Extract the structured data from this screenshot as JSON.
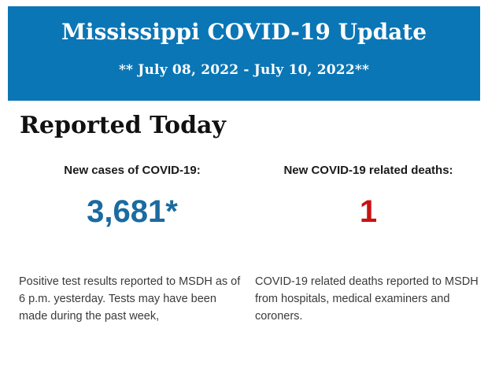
{
  "header": {
    "title": "Mississippi COVID-19 Update",
    "date_range": "** July 08, 2022 - July 10, 2022**"
  },
  "section": {
    "heading": "Reported Today"
  },
  "stats": {
    "cases": {
      "label": "New cases of COVID-19:",
      "value": "3,681*",
      "description": "Positive test results reported to MSDH as of 6 p.m. yesterday. Tests may have been made during the past week,"
    },
    "deaths": {
      "label": "New COVID-19 related deaths:",
      "value": "1",
      "description": "COVID-19 related deaths reported to MSDH from hospitals, medical examiners and coroners."
    }
  },
  "colors": {
    "header_background": "#0a76b5",
    "cases_value": "#1a6ba0",
    "deaths_value": "#c91212",
    "body_text": "#3a3a3a"
  }
}
